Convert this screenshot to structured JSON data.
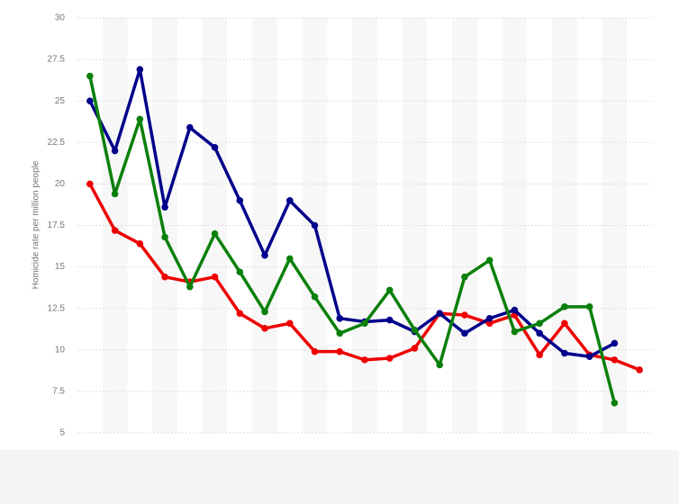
{
  "chart_data": {
    "type": "line",
    "y_label": "Homicide rate per million people",
    "categories": [
      null,
      null,
      null,
      null,
      null,
      null,
      null,
      null,
      null,
      null,
      null,
      null,
      null,
      null,
      null,
      null,
      null,
      null,
      null,
      null,
      null,
      null,
      null
    ],
    "series": [
      {
        "color": "#ee0000",
        "values": [
          20.0,
          17.2,
          16.4,
          14.4,
          14.1,
          14.4,
          12.2,
          11.3,
          11.6,
          9.9,
          9.9,
          9.4,
          9.5,
          10.1,
          12.2,
          12.1,
          11.6,
          12.1,
          9.7,
          11.6,
          9.7,
          9.4,
          8.8
        ]
      },
      {
        "color": "#00008b",
        "values": [
          25.0,
          22.0,
          26.9,
          18.6,
          23.4,
          22.2,
          19.0,
          15.7,
          19.0,
          17.5,
          11.9,
          11.7,
          11.8,
          11.1,
          12.2,
          11.0,
          11.9,
          12.4,
          11.0,
          9.8,
          9.6,
          10.4,
          null
        ]
      },
      {
        "color": "#0a800a",
        "values": [
          26.5,
          19.4,
          23.9,
          16.8,
          13.8,
          17.0,
          14.7,
          12.3,
          15.5,
          13.2,
          11.0,
          11.6,
          13.6,
          11.2,
          9.1,
          14.4,
          15.4,
          11.1,
          11.6,
          12.6,
          12.6,
          6.8,
          null
        ]
      }
    ],
    "ylim": [
      5,
      30
    ],
    "yticks": [
      5,
      7.5,
      10,
      12.5,
      15,
      17.5,
      20,
      22.5,
      25,
      27.5,
      30
    ],
    "grid": true
  }
}
